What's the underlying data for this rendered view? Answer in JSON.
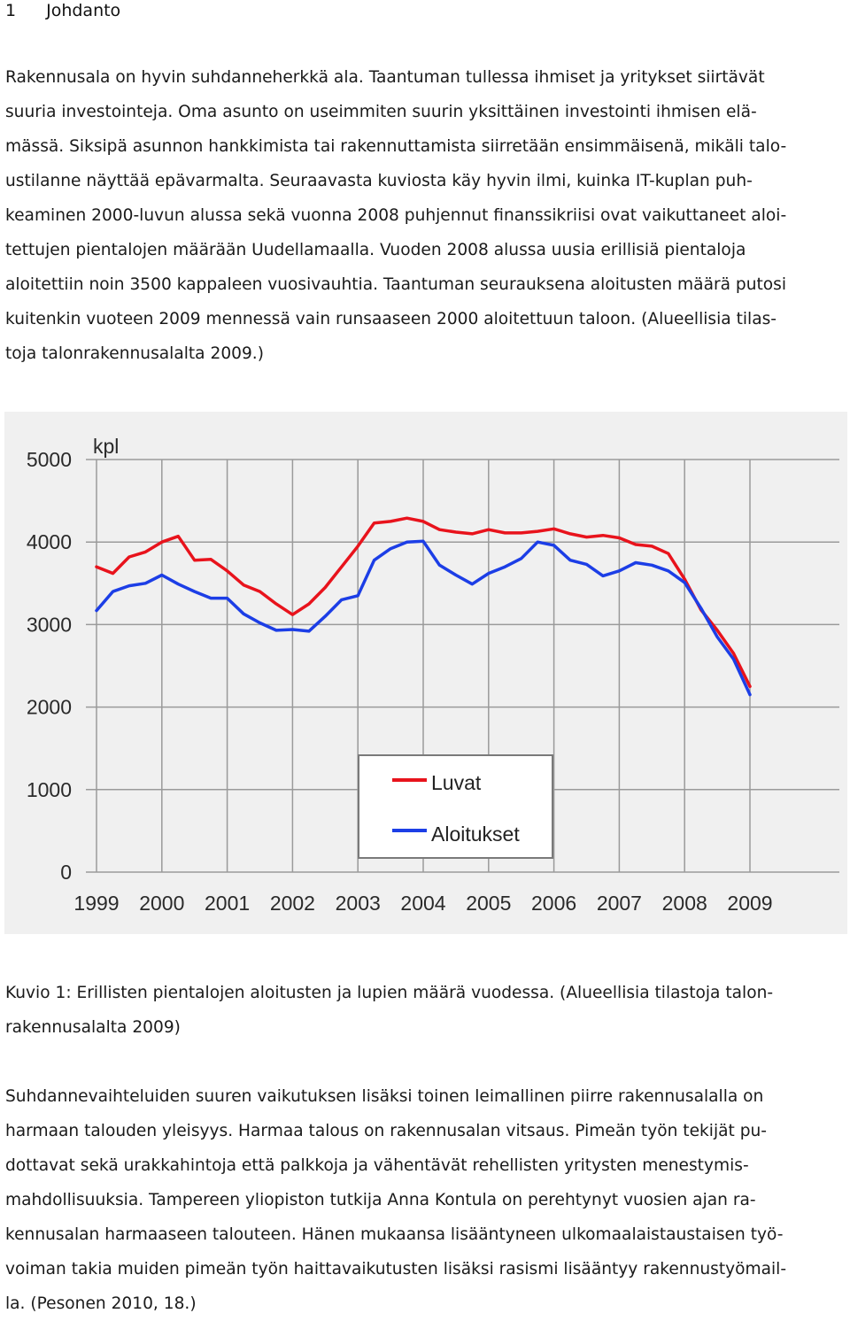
{
  "heading": {
    "number": "1",
    "title": "Johdanto"
  },
  "intro_lines": [
    "Rakennusala on hyvin suhdanneherkkä ala. Taantuman tullessa ihmiset ja yritykset siirtävät",
    "suuria investointeja. Oma asunto on useimmiten suurin yksittäinen investointi ihmisen elä-",
    "mässä. Siksipä asunnon hankkimista tai rakennuttamista siirretään ensimmäisenä, mikäli talo-",
    "ustilanne näyttää epävarmalta. Seuraavasta kuviosta käy hyvin ilmi, kuinka IT-kuplan puh-",
    "keaminen 2000-luvun alussa sekä vuonna 2008 puhjennut finanssikriisi ovat vaikuttaneet aloi-",
    "tettujen pientalojen määrään Uudellamaalla. Vuoden 2008 alussa uusia erillisiä pientaloja",
    "aloitettiin noin 3500 kappaleen vuosivauhtia. Taantuman seurauksena aloitusten määrä putosi",
    "kuitenkin vuoteen 2009 mennessä vain runsaaseen 2000 aloitettuun taloon. (Alueellisia tilas-",
    "toja talonrakennusalalta 2009.)"
  ],
  "chart_data": {
    "type": "line",
    "ylabel": "kpl",
    "ylim": [
      0,
      5000
    ],
    "yticks": [
      0,
      1000,
      2000,
      3000,
      4000,
      5000
    ],
    "xticks": [
      "1999",
      "2000",
      "2001",
      "2002",
      "2003",
      "2004",
      "2005",
      "2006",
      "2007",
      "2008",
      "2009"
    ],
    "xlim": [
      1999,
      2009
    ],
    "grid": true,
    "legend_position": "center-bottom",
    "series": [
      {
        "name": "Luvat",
        "color": "#e8131c",
        "points": [
          [
            1999.0,
            3700
          ],
          [
            1999.25,
            3620
          ],
          [
            1999.5,
            3820
          ],
          [
            1999.75,
            3880
          ],
          [
            2000.0,
            4000
          ],
          [
            2000.25,
            4070
          ],
          [
            2000.5,
            3780
          ],
          [
            2000.75,
            3790
          ],
          [
            2001.0,
            3650
          ],
          [
            2001.25,
            3480
          ],
          [
            2001.5,
            3400
          ],
          [
            2001.75,
            3250
          ],
          [
            2002.0,
            3120
          ],
          [
            2002.25,
            3250
          ],
          [
            2002.5,
            3450
          ],
          [
            2002.75,
            3700
          ],
          [
            2003.0,
            3950
          ],
          [
            2003.25,
            4230
          ],
          [
            2003.5,
            4250
          ],
          [
            2003.75,
            4290
          ],
          [
            2004.0,
            4250
          ],
          [
            2004.25,
            4150
          ],
          [
            2004.5,
            4120
          ],
          [
            2004.75,
            4100
          ],
          [
            2005.0,
            4150
          ],
          [
            2005.25,
            4110
          ],
          [
            2005.5,
            4110
          ],
          [
            2005.75,
            4130
          ],
          [
            2006.0,
            4160
          ],
          [
            2006.25,
            4100
          ],
          [
            2006.5,
            4060
          ],
          [
            2006.75,
            4080
          ],
          [
            2007.0,
            4050
          ],
          [
            2007.25,
            3970
          ],
          [
            2007.5,
            3950
          ],
          [
            2007.75,
            3860
          ],
          [
            2008.0,
            3550
          ],
          [
            2008.25,
            3180
          ],
          [
            2008.5,
            2930
          ],
          [
            2008.75,
            2650
          ],
          [
            2009.0,
            2250
          ]
        ]
      },
      {
        "name": "Aloitukset",
        "color": "#1c3ee6",
        "points": [
          [
            1999.0,
            3170
          ],
          [
            1999.25,
            3400
          ],
          [
            1999.5,
            3470
          ],
          [
            1999.75,
            3500
          ],
          [
            2000.0,
            3600
          ],
          [
            2000.25,
            3490
          ],
          [
            2000.5,
            3400
          ],
          [
            2000.75,
            3320
          ],
          [
            2001.0,
            3320
          ],
          [
            2001.25,
            3130
          ],
          [
            2001.5,
            3020
          ],
          [
            2001.75,
            2930
          ],
          [
            2002.0,
            2940
          ],
          [
            2002.25,
            2920
          ],
          [
            2002.5,
            3100
          ],
          [
            2002.75,
            3300
          ],
          [
            2003.0,
            3350
          ],
          [
            2003.25,
            3780
          ],
          [
            2003.5,
            3920
          ],
          [
            2003.75,
            4000
          ],
          [
            2004.0,
            4010
          ],
          [
            2004.25,
            3720
          ],
          [
            2004.5,
            3600
          ],
          [
            2004.75,
            3490
          ],
          [
            2005.0,
            3620
          ],
          [
            2005.25,
            3700
          ],
          [
            2005.5,
            3800
          ],
          [
            2005.75,
            4000
          ],
          [
            2006.0,
            3960
          ],
          [
            2006.25,
            3780
          ],
          [
            2006.5,
            3730
          ],
          [
            2006.75,
            3590
          ],
          [
            2007.0,
            3650
          ],
          [
            2007.25,
            3750
          ],
          [
            2007.5,
            3720
          ],
          [
            2007.75,
            3650
          ],
          [
            2008.0,
            3510
          ],
          [
            2008.25,
            3200
          ],
          [
            2008.5,
            2850
          ],
          [
            2008.75,
            2580
          ],
          [
            2009.0,
            2150
          ]
        ]
      }
    ]
  },
  "caption_lines": [
    "Kuvio 1: Erillisten pientalojen aloitusten ja lupien määrä vuodessa. (Alueellisia tilastoja talon-",
    "rakennusalalta 2009)"
  ],
  "body_lines": [
    "Suhdannevaihteluiden suuren vaikutuksen lisäksi toinen leimallinen piirre rakennusalalla on",
    "harmaan talouden yleisyys. Harmaa talous on rakennusalan vitsaus. Pimeän työn tekijät pu-",
    "dottavat sekä urakkahintoja että palkkoja ja vähentävät rehellisten yritysten menestymis-",
    "mahdollisuuksia. Tampereen yliopiston tutkija Anna Kontula on perehtynyt vuosien ajan ra-",
    "kennusalan harmaaseen talouteen. Hänen mukaansa lisääntyneen ulkomaalaistaustaisen työ-",
    "voiman takia muiden pimeän työn haittavaikutusten lisäksi rasismi lisääntyy rakennustyömail-",
    "la. (Pesonen 2010, 18.)"
  ]
}
